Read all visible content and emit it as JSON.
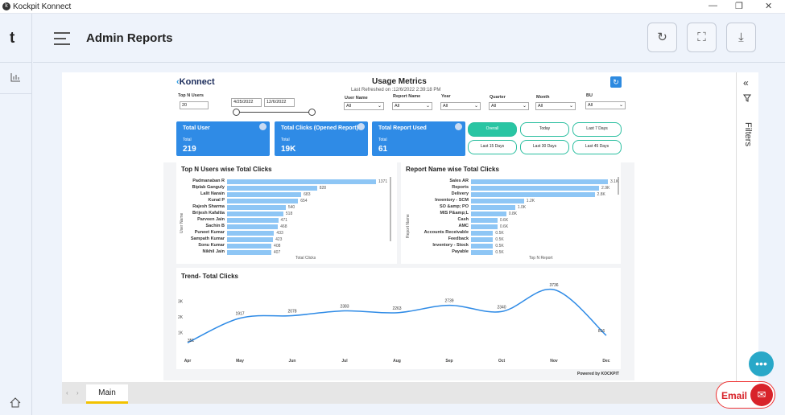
{
  "window": {
    "title": "Kockpit Konnect",
    "app_icon": "kockpit-icon",
    "controls": [
      "minimize",
      "restore",
      "close"
    ]
  },
  "sidebar": {
    "logo": "t",
    "items": [
      "chart-icon"
    ],
    "home": "home-icon"
  },
  "header": {
    "title": "Admin Reports",
    "buttons": [
      "refresh-icon",
      "fullscreen-icon",
      "download-icon"
    ]
  },
  "report": {
    "logo": "Konnect",
    "title": "Usage Metrics",
    "last_refreshed": "Last Refreshed on :12/6/2022 2:39:18 PM",
    "filters": {
      "top_n_label": "Top N Users",
      "top_n_value": "20",
      "date_from": "4/25/2022",
      "date_to": "12/6/2022",
      "user_name_label": "User Name",
      "user_name_value": "All",
      "report_name_label": "Report Name",
      "report_name_value": "All",
      "year_label": "Year",
      "year_value": "All",
      "quarter_label": "Quarter",
      "quarter_value": "All",
      "month_label": "Month",
      "month_value": "All",
      "bu_label": "BU",
      "bu_value": "All"
    },
    "kpis": [
      {
        "title": "Total User",
        "sub": "Total",
        "value": "219"
      },
      {
        "title": "Total Clicks (Opened Report)",
        "sub": "Total",
        "value": "19K"
      },
      {
        "title": "Total Report Used",
        "sub": "Total",
        "value": "61"
      }
    ],
    "periods": [
      "Overall",
      "Today",
      "Last 7 Days",
      "Last 15 Days",
      "Last 30 Days",
      "Last 45 Days"
    ],
    "active_period": "Overall",
    "users_chart": {
      "title": "Top N Users wise Total Clicks",
      "xlabel": "Total Clicks",
      "ylabel": "User Name",
      "labels": [
        "Padmanaban R",
        "Biplab Ganguly",
        "Lalit Narain",
        "Kunal P",
        "Rajesh Sharma",
        "Brijesh Kafaltia",
        "Parveen Jain",
        "Sachin B",
        "Puneet Kumar",
        "Sampath Kumar",
        "Sonu Kumar",
        "Nikhil Jain"
      ],
      "values": [
        1371,
        828,
        683,
        654,
        540,
        518,
        471,
        468,
        433,
        423,
        408,
        407
      ],
      "value_labels": [
        "1371",
        "828",
        "683",
        "654",
        "540",
        "518",
        "471",
        "468",
        "433",
        "423",
        "408",
        "407"
      ]
    },
    "report_chart": {
      "title": "Report Name wise Total Clicks",
      "xlabel": "Top N Report",
      "ylabel": "Report Name",
      "labels": [
        "Sales AR",
        "Reports",
        "Delivery",
        "Inventory - SCM",
        "SO &amp; PO",
        "MIS P&amp;L",
        "Cash",
        "AMC",
        "Accounts Receivable",
        "Feedback",
        "Inventory - Stock",
        "Payable"
      ],
      "values": [
        3.1,
        2.9,
        2.8,
        1.2,
        1.0,
        0.8,
        0.6,
        0.6,
        0.5,
        0.5,
        0.5,
        0.5
      ],
      "value_labels": [
        "3.1K",
        "2.9K",
        "2.8K",
        "1.2K",
        "1.0K",
        "0.8K",
        "0.6K",
        "0.6K",
        "0.5K",
        "0.5K",
        "0.5K",
        "0.5K"
      ]
    },
    "trend": {
      "title": "Trend- Total Clicks",
      "months": [
        "Apr",
        "May",
        "Jun",
        "Jul",
        "Aug",
        "Sep",
        "Oct",
        "Nov",
        "Dec"
      ],
      "values": [
        351,
        1917,
        2078,
        2383,
        2263,
        2739,
        2340,
        3736,
        816
      ],
      "value_labels": [
        "351",
        "1917",
        "2078",
        "2383",
        "2263",
        "2739",
        "2340",
        "3736",
        "816"
      ],
      "yticks": [
        "1K",
        "2K",
        "3K"
      ]
    },
    "footer": "Powered by KOCKPIT"
  },
  "filters_pane": {
    "label": "Filters"
  },
  "tabs": {
    "main": "Main"
  },
  "email": {
    "label": "Email"
  },
  "colors": {
    "accent": "#2f8be6",
    "bar": "#8ec6f5",
    "period": "#29c5a3",
    "email": "#d8232a"
  }
}
